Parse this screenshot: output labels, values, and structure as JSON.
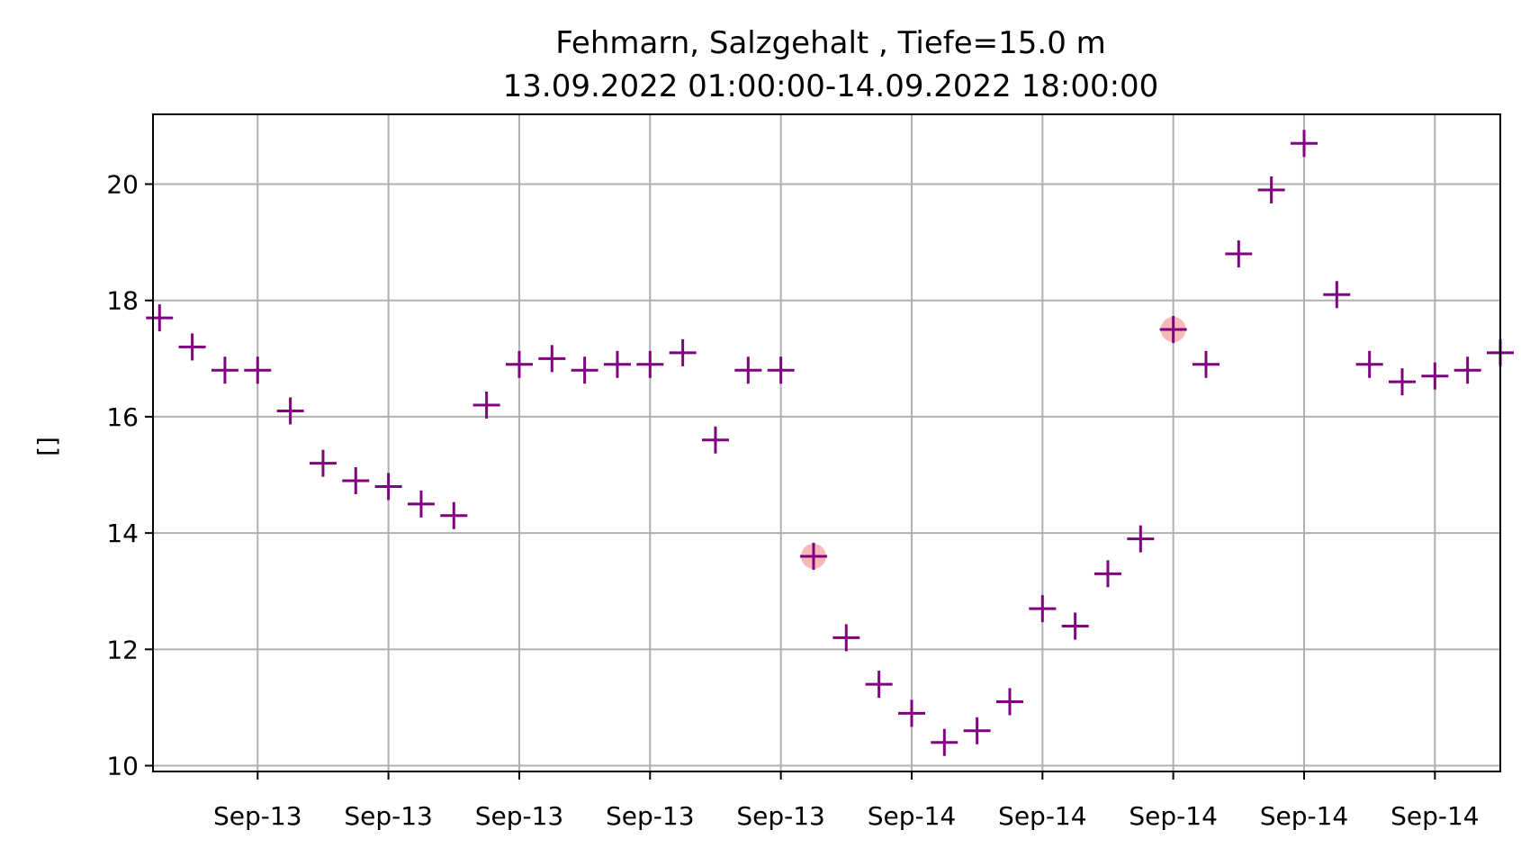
{
  "chart_data": {
    "type": "scatter",
    "title": "Fehmarn, Salzgehalt , Tiefe=15.0 m",
    "subtitle": "13.09.2022 01:00:00-14.09.2022 18:00:00",
    "xlabel": "",
    "ylabel": "[]",
    "ylim": [
      9.9,
      21.2
    ],
    "xlim": [
      "2022-09-13 00:48",
      "2022-09-14 18:00"
    ],
    "grid": true,
    "marker": "+",
    "colors": {
      "marker": "#800080",
      "highlight": "#f4a0a0"
    },
    "yticks": [
      "10",
      "12",
      "14",
      "16",
      "18",
      "20"
    ],
    "xticks": [
      {
        "x": "2022-09-13 04:00",
        "label": "Sep-13"
      },
      {
        "x": "2022-09-13 08:00",
        "label": "Sep-13"
      },
      {
        "x": "2022-09-13 12:00",
        "label": "Sep-13"
      },
      {
        "x": "2022-09-13 16:00",
        "label": "Sep-13"
      },
      {
        "x": "2022-09-13 20:00",
        "label": "Sep-13"
      },
      {
        "x": "2022-09-14 00:00",
        "label": "Sep-14"
      },
      {
        "x": "2022-09-14 04:00",
        "label": "Sep-14"
      },
      {
        "x": "2022-09-14 08:00",
        "label": "Sep-14"
      },
      {
        "x": "2022-09-14 12:00",
        "label": "Sep-14"
      },
      {
        "x": "2022-09-14 16:00",
        "label": "Sep-14"
      }
    ],
    "points": [
      {
        "x": "2022-09-13 01:00",
        "y": 17.7
      },
      {
        "x": "2022-09-13 02:00",
        "y": 17.2
      },
      {
        "x": "2022-09-13 03:00",
        "y": 16.8
      },
      {
        "x": "2022-09-13 04:00",
        "y": 16.8
      },
      {
        "x": "2022-09-13 05:00",
        "y": 16.1
      },
      {
        "x": "2022-09-13 06:00",
        "y": 15.2
      },
      {
        "x": "2022-09-13 07:00",
        "y": 14.9
      },
      {
        "x": "2022-09-13 08:00",
        "y": 14.8
      },
      {
        "x": "2022-09-13 09:00",
        "y": 14.5
      },
      {
        "x": "2022-09-13 10:00",
        "y": 14.3
      },
      {
        "x": "2022-09-13 11:00",
        "y": 16.2
      },
      {
        "x": "2022-09-13 12:00",
        "y": 16.9
      },
      {
        "x": "2022-09-13 13:00",
        "y": 17.0
      },
      {
        "x": "2022-09-13 14:00",
        "y": 16.8
      },
      {
        "x": "2022-09-13 15:00",
        "y": 16.9
      },
      {
        "x": "2022-09-13 16:00",
        "y": 16.9
      },
      {
        "x": "2022-09-13 17:00",
        "y": 17.1
      },
      {
        "x": "2022-09-13 18:00",
        "y": 15.6
      },
      {
        "x": "2022-09-13 19:00",
        "y": 16.8
      },
      {
        "x": "2022-09-13 20:00",
        "y": 16.8
      },
      {
        "x": "2022-09-13 21:00",
        "y": 13.6,
        "highlight": true
      },
      {
        "x": "2022-09-13 22:00",
        "y": 12.2
      },
      {
        "x": "2022-09-13 23:00",
        "y": 11.4
      },
      {
        "x": "2022-09-14 00:00",
        "y": 10.9
      },
      {
        "x": "2022-09-14 01:00",
        "y": 10.4
      },
      {
        "x": "2022-09-14 02:00",
        "y": 10.6
      },
      {
        "x": "2022-09-14 03:00",
        "y": 11.1
      },
      {
        "x": "2022-09-14 04:00",
        "y": 12.7
      },
      {
        "x": "2022-09-14 05:00",
        "y": 12.4
      },
      {
        "x": "2022-09-14 06:00",
        "y": 13.3
      },
      {
        "x": "2022-09-14 07:00",
        "y": 13.9
      },
      {
        "x": "2022-09-14 08:00",
        "y": 17.5,
        "highlight": true
      },
      {
        "x": "2022-09-14 09:00",
        "y": 16.9
      },
      {
        "x": "2022-09-14 10:00",
        "y": 18.8
      },
      {
        "x": "2022-09-14 11:00",
        "y": 19.9
      },
      {
        "x": "2022-09-14 12:00",
        "y": 20.7
      },
      {
        "x": "2022-09-14 13:00",
        "y": 18.1
      },
      {
        "x": "2022-09-14 14:00",
        "y": 16.9
      },
      {
        "x": "2022-09-14 15:00",
        "y": 16.6
      },
      {
        "x": "2022-09-14 16:00",
        "y": 16.7
      },
      {
        "x": "2022-09-14 17:00",
        "y": 16.8
      },
      {
        "x": "2022-09-14 18:00",
        "y": 17.1
      }
    ]
  }
}
